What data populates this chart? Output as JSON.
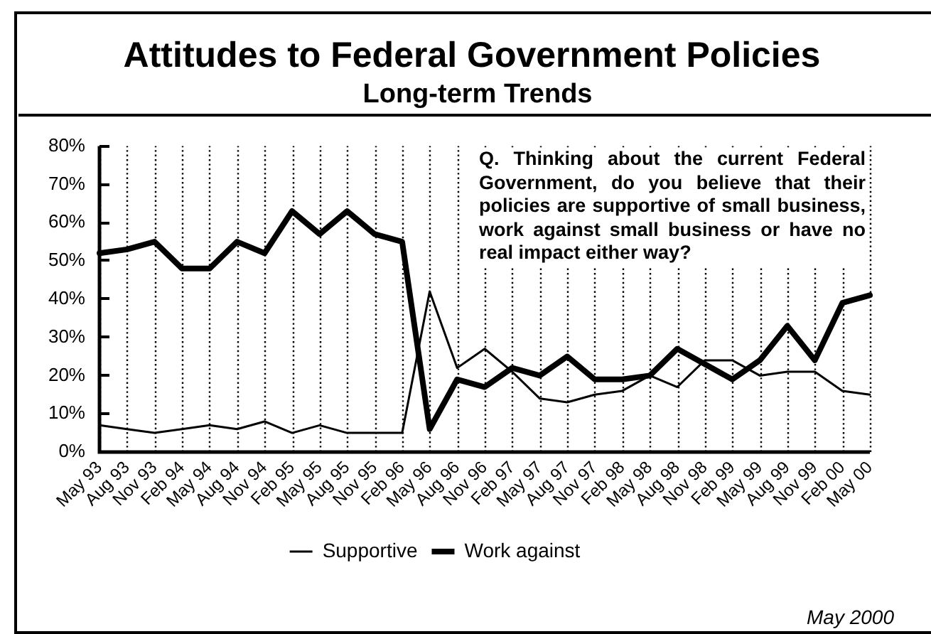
{
  "chart_data": {
    "type": "line",
    "title": "Attitudes to Federal Government Policies",
    "subtitle": "Long-term Trends",
    "categories": [
      "May 93",
      "Aug 93",
      "Nov 93",
      "Feb 94",
      "May 94",
      "Aug 94",
      "Nov 94",
      "Feb 95",
      "May 95",
      "Aug 95",
      "Nov 95",
      "Feb 96",
      "May 96",
      "Aug 96",
      "Nov 96",
      "Feb 97",
      "May 97",
      "Aug 97",
      "Nov 97",
      "Feb 98",
      "May 98",
      "Aug 98",
      "Nov 98",
      "Feb 99",
      "May 99",
      "Aug 99",
      "Nov 99",
      "Feb 00",
      "May 00"
    ],
    "series": [
      {
        "name": "Supportive",
        "color": "#000000",
        "values": [
          7,
          6,
          5,
          6,
          7,
          6,
          8,
          5,
          7,
          5,
          5,
          5,
          42,
          22,
          27,
          21,
          14,
          13,
          15,
          16,
          20,
          17,
          24,
          24,
          20,
          21,
          21,
          16,
          15
        ]
      },
      {
        "name": "Work against",
        "color": "#000000",
        "values": [
          52,
          53,
          55,
          48,
          48,
          55,
          52,
          63,
          57,
          63,
          57,
          55,
          6,
          19,
          17,
          22,
          20,
          25,
          19,
          19,
          20,
          27,
          23,
          19,
          24,
          33,
          24,
          39,
          41
        ]
      }
    ],
    "ylim": [
      0,
      80
    ],
    "yticks": [
      {
        "value": 0,
        "label": "0%"
      },
      {
        "value": 10,
        "label": "10%"
      },
      {
        "value": 20,
        "label": "20%"
      },
      {
        "value": 30,
        "label": "30%"
      },
      {
        "value": 40,
        "label": "40%"
      },
      {
        "value": 50,
        "label": "50%"
      },
      {
        "value": 60,
        "label": "60%"
      },
      {
        "value": 70,
        "label": "70%"
      },
      {
        "value": 80,
        "label": "80%"
      }
    ],
    "grid": "x",
    "legend": "bottom",
    "marker": "none",
    "annotations": [
      "Q. Thinking about the current Federal Government, do you believe that their policies are supportive of small business, work against small business or have no real impact either way?",
      "May 2000"
    ]
  }
}
